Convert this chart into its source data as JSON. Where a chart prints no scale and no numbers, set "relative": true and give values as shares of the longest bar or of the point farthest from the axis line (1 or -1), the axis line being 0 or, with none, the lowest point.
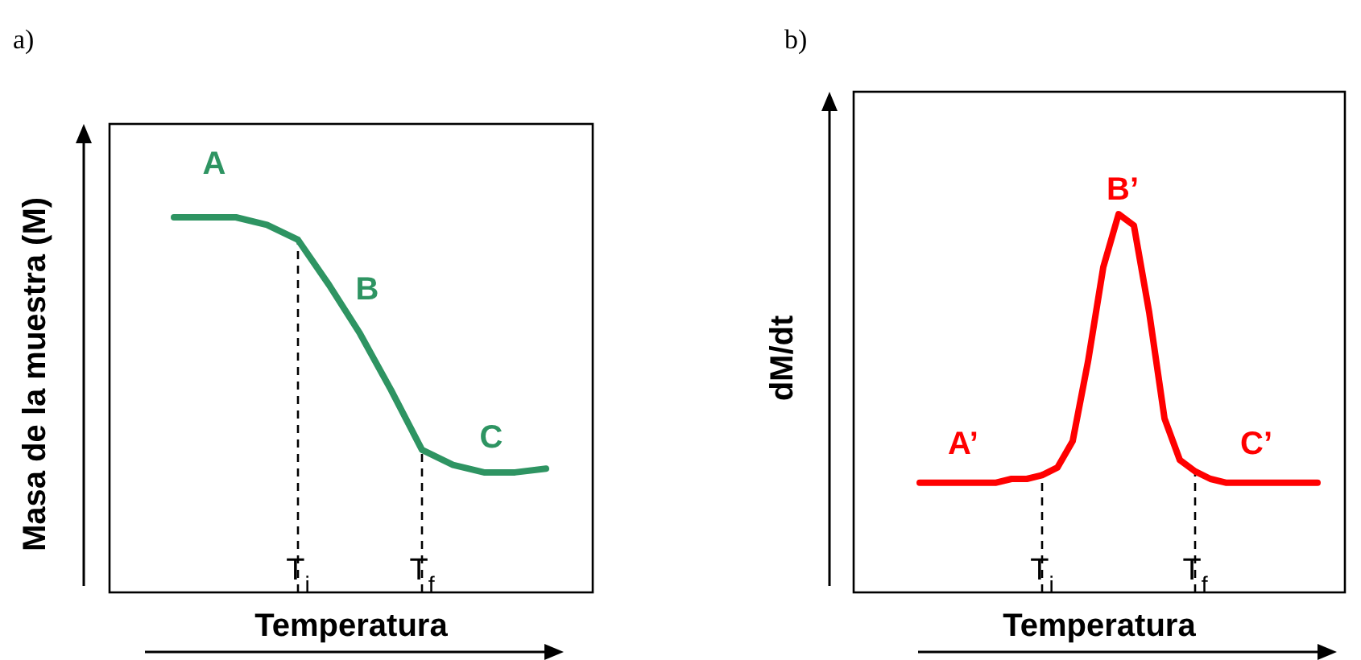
{
  "chart_data": [
    {
      "type": "line",
      "title": "a)",
      "xlabel": "Temperatura",
      "ylabel": "Masa de la muestra (M)",
      "relative": true,
      "categories": [
        null,
        null,
        null,
        null,
        "T$_{i}$",
        null,
        null,
        null,
        "T$_{f}$",
        null,
        null,
        null,
        null
      ],
      "series": [
        {
          "color": "#2e9462",
          "values": [
            1.0,
            1.0,
            1.0,
            0.98,
            0.94,
            0.82,
            0.69,
            0.54,
            0.38,
            0.34,
            0.32,
            0.32,
            0.33
          ]
        }
      ],
      "ref_lines": [
        {
          "axis": "x",
          "value": "T$_{i}$",
          "line_style": "dashed"
        },
        {
          "axis": "x",
          "value": "T$_{f}$",
          "line_style": "dashed"
        }
      ],
      "annotations": [
        "A",
        "B",
        "C"
      ]
    },
    {
      "type": "line",
      "title": "b)",
      "xlabel": "Temperatura",
      "ylabel": "dM/dt",
      "relative": true,
      "categories": [
        null,
        null,
        null,
        null,
        null,
        null,
        null,
        null,
        "T$_{i}$",
        null,
        null,
        null,
        null,
        null,
        null,
        null,
        null,
        null,
        "T$_{f}$",
        null,
        null,
        null,
        null,
        null,
        null,
        null,
        null
      ],
      "series": [
        {
          "color": "#ff0000",
          "values": [
            0.29,
            0.29,
            0.29,
            0.29,
            0.29,
            0.29,
            0.3,
            0.3,
            0.31,
            0.33,
            0.4,
            0.61,
            0.86,
            1.0,
            0.97,
            0.74,
            0.46,
            0.35,
            0.32,
            0.3,
            0.29,
            0.29,
            0.29,
            0.29,
            0.29,
            0.29,
            0.29
          ]
        }
      ],
      "ref_lines": [
        {
          "axis": "x",
          "value": "T$_{i}$",
          "line_style": "dashed"
        },
        {
          "axis": "x",
          "value": "T$_{f}$",
          "line_style": "dashed"
        }
      ],
      "annotations": [
        "A’",
        "B’",
        "C’"
      ]
    }
  ]
}
